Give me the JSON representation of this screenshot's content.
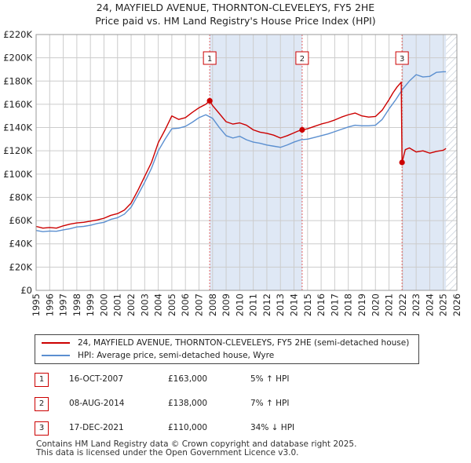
{
  "title": "24, MAYFIELD AVENUE, THORNTON-CLEVELEYS, FY5 2HE",
  "subtitle": "Price paid vs. HM Land Registry's House Price Index (HPI)",
  "colors": {
    "price_paid": "#cc0000",
    "hpi": "#5b8fd0",
    "shade": "#dfe8f5",
    "grid": "#cccccc"
  },
  "chart_data": {
    "type": "line",
    "xlim": [
      1995,
      2026
    ],
    "ylim": [
      0,
      220000
    ],
    "x_ticks": [
      "1995",
      "1996",
      "1997",
      "1998",
      "1999",
      "2000",
      "2001",
      "2002",
      "2003",
      "2004",
      "2005",
      "2006",
      "2007",
      "2008",
      "2009",
      "2010",
      "2011",
      "2012",
      "2013",
      "2014",
      "2015",
      "2016",
      "2017",
      "2018",
      "2019",
      "2020",
      "2021",
      "2022",
      "2023",
      "2024",
      "2025",
      "2026"
    ],
    "y_ticks": [
      {
        "value": 0,
        "label": "£0"
      },
      {
        "value": 20000,
        "label": "£20K"
      },
      {
        "value": 40000,
        "label": "£40K"
      },
      {
        "value": 60000,
        "label": "£60K"
      },
      {
        "value": 80000,
        "label": "£80K"
      },
      {
        "value": 100000,
        "label": "£100K"
      },
      {
        "value": 120000,
        "label": "£120K"
      },
      {
        "value": 140000,
        "label": "£140K"
      },
      {
        "value": 160000,
        "label": "£160K"
      },
      {
        "value": 180000,
        "label": "£180K"
      },
      {
        "value": 200000,
        "label": "£200K"
      },
      {
        "value": 220000,
        "label": "£220K"
      }
    ],
    "shaded_periods": [
      [
        2007.79,
        2014.6
      ],
      [
        2021.96,
        2025.2
      ]
    ],
    "hatch_from": 2025.2,
    "series": [
      {
        "name": "24, MAYFIELD AVENUE, THORNTON-CLEVELEYS, FY5 2HE (semi-detached house)",
        "x": [
          1995,
          1995.5,
          1996,
          1996.5,
          1997,
          1997.5,
          1998,
          1998.5,
          1999,
          1999.5,
          2000,
          2000.5,
          2001,
          2001.5,
          2002,
          2002.5,
          2003,
          2003.5,
          2004,
          2004.5,
          2005,
          2005.5,
          2006,
          2006.5,
          2007,
          2007.5,
          2007.79,
          2008,
          2008.5,
          2009,
          2009.5,
          2010,
          2010.5,
          2011,
          2011.5,
          2012,
          2012.5,
          2013,
          2013.5,
          2014,
          2014.3,
          2014.6,
          2015,
          2015.5,
          2016,
          2016.5,
          2017,
          2017.5,
          2018,
          2018.5,
          2019,
          2019.5,
          2020,
          2020.5,
          2021,
          2021.3,
          2021.6,
          2021.9,
          2021.96,
          2022.2,
          2022.5,
          2023,
          2023.5,
          2024,
          2024.5,
          2025,
          2025.2
        ],
        "y": [
          55000,
          53500,
          54000,
          53500,
          55500,
          57000,
          58000,
          58500,
          59500,
          60500,
          62000,
          64500,
          66000,
          69000,
          75000,
          86000,
          98000,
          110000,
          127000,
          138000,
          150000,
          147000,
          148500,
          153000,
          157000,
          160000,
          163000,
          159000,
          152000,
          145000,
          143000,
          144000,
          142000,
          138000,
          136000,
          135000,
          133500,
          131000,
          133000,
          135500,
          137000,
          138000,
          139000,
          141000,
          143000,
          144500,
          146500,
          149000,
          151000,
          152500,
          150000,
          149000,
          149500,
          155000,
          164000,
          170000,
          175000,
          179000,
          110000,
          121000,
          122500,
          119000,
          120000,
          118000,
          119500,
          120500,
          122000
        ]
      },
      {
        "name": "HPI: Average price, semi-detached house, Wyre",
        "x": [
          1995,
          1995.5,
          1996,
          1996.5,
          1997,
          1997.5,
          1998,
          1998.5,
          1999,
          1999.5,
          2000,
          2000.5,
          2001,
          2001.5,
          2002,
          2002.5,
          2003,
          2003.5,
          2004,
          2004.5,
          2005,
          2005.5,
          2006,
          2006.5,
          2007,
          2007.5,
          2008,
          2008.5,
          2009,
          2009.5,
          2010,
          2010.5,
          2011,
          2011.5,
          2012,
          2012.5,
          2013,
          2013.5,
          2014,
          2014.5,
          2015,
          2015.5,
          2016,
          2016.5,
          2017,
          2017.5,
          2018,
          2018.5,
          2019,
          2019.5,
          2020,
          2020.5,
          2021,
          2021.5,
          2022,
          2022.5,
          2023,
          2023.5,
          2024,
          2024.5,
          2025,
          2025.2
        ],
        "y": [
          51500,
          50500,
          51000,
          50800,
          52000,
          53000,
          54500,
          55000,
          56000,
          57500,
          58500,
          61000,
          62500,
          65500,
          71500,
          82000,
          93000,
          105000,
          120000,
          130000,
          139000,
          139500,
          141000,
          144500,
          148500,
          151000,
          148000,
          140000,
          133000,
          131000,
          132500,
          129500,
          127500,
          126500,
          125000,
          124000,
          123000,
          125000,
          127500,
          129500,
          130000,
          131500,
          133000,
          134500,
          136500,
          138500,
          140500,
          142000,
          141500,
          141500,
          142000,
          147000,
          156000,
          164000,
          173000,
          180000,
          185500,
          183500,
          184000,
          187500,
          188000,
          188000
        ]
      }
    ],
    "sale_markers": [
      {
        "label": "1",
        "x": 2007.79,
        "y": 163000
      },
      {
        "label": "2",
        "x": 2014.6,
        "y": 138000
      },
      {
        "label": "3",
        "x": 2021.96,
        "y": 110000
      }
    ]
  },
  "legend": [
    {
      "label": "24, MAYFIELD AVENUE, THORNTON-CLEVELEYS, FY5 2HE (semi-detached house)",
      "color": "#cc0000"
    },
    {
      "label": "HPI: Average price, semi-detached house, Wyre",
      "color": "#5b8fd0"
    }
  ],
  "sales": [
    {
      "num": "1",
      "date": "16-OCT-2007",
      "price": "£163,000",
      "hpi": "5% ↑ HPI"
    },
    {
      "num": "2",
      "date": "08-AUG-2014",
      "price": "£138,000",
      "hpi": "7% ↑ HPI"
    },
    {
      "num": "3",
      "date": "17-DEC-2021",
      "price": "£110,000",
      "hpi": "34% ↓ HPI"
    }
  ],
  "footer": {
    "line1": "Contains HM Land Registry data © Crown copyright and database right 2025.",
    "line2": "This data is licensed under the Open Government Licence v3.0."
  }
}
